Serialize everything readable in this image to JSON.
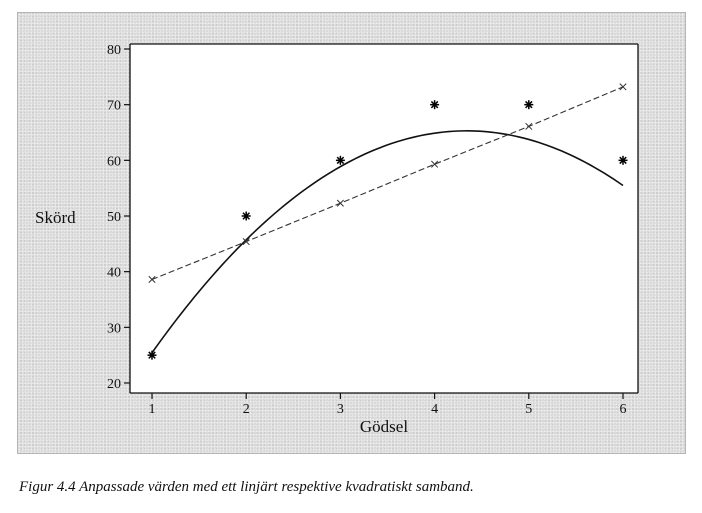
{
  "caption": "Figur 4.4   Anpassade värden med ett linjärt respektive kvadratiskt samband.",
  "chart_data": {
    "type": "scatter",
    "xlabel": "Gödsel",
    "ylabel": "Skörd",
    "xlim": [
      1,
      6
    ],
    "ylim": [
      20,
      80
    ],
    "x_ticks": [
      "1",
      "2",
      "3",
      "4",
      "5",
      "6"
    ],
    "y_ticks": [
      "20",
      "30",
      "40",
      "50",
      "60",
      "70",
      "80"
    ],
    "grid": false,
    "legend": "none",
    "series": [
      {
        "kind": "observed",
        "marker": "asterisk",
        "x": [
          1,
          2,
          3,
          4,
          5,
          6
        ],
        "y": [
          25,
          50,
          60,
          70,
          70,
          60
        ]
      },
      {
        "kind": "linear-fit",
        "line": "dashed",
        "marker": "small-x",
        "x": [
          1,
          2,
          3,
          4,
          5,
          6
        ],
        "y": [
          38.6,
          45.4,
          52.3,
          59.3,
          66.1,
          73.2
        ]
      },
      {
        "kind": "quadratic-fit",
        "line": "solid",
        "coefficients": {
          "a": -3.57,
          "b": 31.0,
          "c": -2.0
        }
      }
    ]
  }
}
